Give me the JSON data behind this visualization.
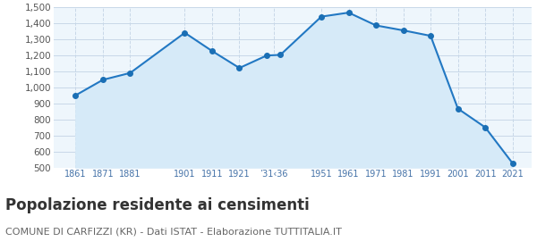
{
  "years": [
    1861,
    1871,
    1881,
    1901,
    1911,
    1921,
    1931,
    1936,
    1951,
    1961,
    1971,
    1981,
    1991,
    2001,
    2011,
    2021
  ],
  "population": [
    951,
    1048,
    1091,
    1342,
    1228,
    1122,
    1200,
    1204,
    1443,
    1468,
    1388,
    1357,
    1323,
    868,
    751,
    527
  ],
  "line_color": "#2278c3",
  "fill_color": "#d6eaf8",
  "marker_color": "#1a6fb5",
  "grid_color": "#c8d8e8",
  "background_color": "#eef6fc",
  "ylim": [
    500,
    1500
  ],
  "yticks": [
    500,
    600,
    700,
    800,
    900,
    1000,
    1100,
    1200,
    1300,
    1400,
    1500
  ],
  "x_tick_positions": [
    1861,
    1871,
    1881,
    1901,
    1911,
    1921,
    1933.5,
    1951,
    1961,
    1971,
    1981,
    1991,
    2001,
    2011,
    2021
  ],
  "x_tick_labels": [
    "1861",
    "1871",
    "1881",
    "1901",
    "1911",
    "1921",
    "’31‹36",
    "1951",
    "1961",
    "1971",
    "1981",
    "1991",
    "2001",
    "2011",
    "2021"
  ],
  "title": "Popolazione residente ai censimenti",
  "subtitle": "COMUNE DI CARFIZZI (KR) - Dati ISTAT - Elaborazione TUTTITALIA.IT",
  "title_fontsize": 12,
  "subtitle_fontsize": 8,
  "tick_color": "#4472a8",
  "tick_fontsize": 7,
  "ytick_color": "#555555",
  "title_color": "#333333",
  "subtitle_color": "#666666"
}
